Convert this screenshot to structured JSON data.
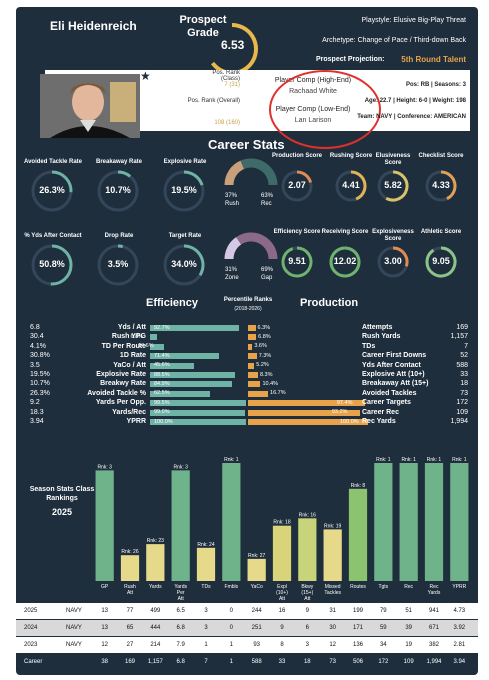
{
  "header": {
    "name": "Eli Heidenreich",
    "grade_title": "Prospect Grade",
    "grade_value": "6.53",
    "grade_fraction": 0.65,
    "playstyle": "Playstyle: Elusive Big-Play Threat",
    "archetype": "Archetype: Change of Pace / Third-down Back",
    "projection_label": "Prospect Projection:",
    "projection_value": "5th Round Talent"
  },
  "ranks": {
    "class_label": "Pos. Rank (Class)",
    "class_value": "7 (31)",
    "overall_label": "Pos. Rank (Overall)",
    "overall_value": "108 (160)"
  },
  "comps": {
    "high_label": "Player Comp (High-End)",
    "high_value": "Rachaad White",
    "low_label": "Player Comp (Low-End)",
    "low_value": "Lan Larison"
  },
  "bio": {
    "pos": "Pos: RB | Seasons: 3",
    "physical": "Age: 22.7 | Height: 6-0 | Weight: 198",
    "team": "Team: NAVY | Conference: AMERICAN"
  },
  "career_stats_title": "Career Stats",
  "rings_left": [
    {
      "label": "Avoided Tackle Rate",
      "value": "26.3%",
      "frac": 0.26,
      "color": "#6fb3a6"
    },
    {
      "label": "Breakaway Rate",
      "value": "10.7%",
      "frac": 0.11,
      "color": "#6fb3a6"
    },
    {
      "label": "Explosive Rate",
      "value": "19.5%",
      "frac": 0.2,
      "color": "#6fb3a6"
    },
    {
      "label": "% Yds After Contact",
      "value": "50.8%",
      "frac": 0.51,
      "color": "#6fb3a6"
    },
    {
      "label": "Drop Rate",
      "value": "3.5%",
      "frac": 0.04,
      "color": "#6fb3a6"
    },
    {
      "label": "Target Rate",
      "value": "34.0%",
      "frac": 0.34,
      "color": "#6fb3a6"
    }
  ],
  "donuts": [
    {
      "a_pct": "37%",
      "a_label": "Rush",
      "b_pct": "63%",
      "b_label": "Rec",
      "a_frac": 0.37,
      "a_color": "#c9a07a",
      "b_color": "#3f6a6a"
    },
    {
      "a_pct": "31%",
      "a_label": "Zone",
      "b_pct": "69%",
      "b_label": "Gap",
      "a_frac": 0.31,
      "a_color": "#d4c8e6",
      "b_color": "#8a6a86"
    }
  ],
  "scores": [
    {
      "label": "Production Score",
      "value": "2.07",
      "frac": 0.21,
      "color": "#e08b55"
    },
    {
      "label": "Rushing Score",
      "value": "4.41",
      "frac": 0.44,
      "color": "#e0b455"
    },
    {
      "label": "Elusiveness Score",
      "value": "5.82",
      "frac": 0.58,
      "color": "#d9c16a"
    },
    {
      "label": "Checklist Score",
      "value": "4.33",
      "frac": 0.43,
      "color": "#e0a055"
    },
    {
      "label": "Efficiency Score",
      "value": "9.51",
      "frac": 0.95,
      "color": "#6fb36f"
    },
    {
      "label": "Receiving Score",
      "value": "12.02",
      "frac": 1.0,
      "color": "#6fb36f"
    },
    {
      "label": "Explosiveness Score",
      "value": "3.00",
      "frac": 0.3,
      "color": "#e08b55"
    },
    {
      "label": "Athletic Score",
      "value": "9.05",
      "frac": 0.91,
      "color": "#8bc38b"
    }
  ],
  "efficiency": {
    "title": "Efficiency",
    "pct_title": "Percentile Ranks",
    "pct_sub": "(2018-2026)",
    "rows": [
      {
        "label": "Yds / Att",
        "value": "6.8",
        "pct": "92.7%",
        "frac": 0.927,
        "pct_r": "6.3%",
        "frac_r": 0.063
      },
      {
        "label": "Rush YPG",
        "value": "30.4",
        "pct": "6.8%",
        "frac": 0.068,
        "pct_r": "6.8%",
        "frac_r": 0.068
      },
      {
        "label": "TD Per Route",
        "value": "4.1%",
        "pct": "14.6%",
        "frac": 0.146,
        "pct_r": "3.6%",
        "frac_r": 0.036
      },
      {
        "label": "1D Rate",
        "value": "30.8%",
        "pct": "71.4%",
        "frac": 0.714,
        "pct_r": "7.3%",
        "frac_r": 0.073
      },
      {
        "label": "YaCo / Att",
        "value": "3.5",
        "pct": "45.6%",
        "frac": 0.456,
        "pct_r": "5.2%",
        "frac_r": 0.052
      },
      {
        "label": "Explosive Rate",
        "value": "19.5%",
        "pct": "88.5%",
        "frac": 0.885,
        "pct_r": "8.3%",
        "frac_r": 0.083
      },
      {
        "label": "Breakwy Rate",
        "value": "10.7%",
        "pct": "84.9%",
        "frac": 0.849,
        "pct_r": "10.4%",
        "frac_r": 0.104
      },
      {
        "label": "Avoided Tackle %",
        "value": "26.3%",
        "pct": "62.5%",
        "frac": 0.625,
        "pct_r": "16.7%",
        "frac_r": 0.167
      },
      {
        "label": "Yards Per Opp.",
        "value": "9.2",
        "pct": "99.5%",
        "frac": 0.995,
        "pct_r": "97.4%",
        "frac_r": 0.974
      },
      {
        "label": "Yards/Rec",
        "value": "18.3",
        "pct": "99.0%",
        "frac": 0.99,
        "pct_r": "93.2%",
        "frac_r": 0.932
      },
      {
        "label": "YPRR",
        "value": "3.94",
        "pct": "100.0%",
        "frac": 1.0,
        "pct_r": "100.0%",
        "frac_r": 1.0
      }
    ]
  },
  "production": {
    "title": "Production",
    "rows": [
      {
        "label": "Attempts",
        "value": "169"
      },
      {
        "label": "Rush Yards",
        "value": "1,157"
      },
      {
        "label": "TDs",
        "value": "7"
      },
      {
        "label": "Career First Downs",
        "value": "52"
      },
      {
        "label": "Yds After Contact",
        "value": "588"
      },
      {
        "label": "Explosive Att (10+)",
        "value": "33"
      },
      {
        "label": "Breakaway Att (15+)",
        "value": "18"
      },
      {
        "label": "Avoided Tackles",
        "value": "73"
      },
      {
        "label": "Career Targets",
        "value": "172"
      },
      {
        "label": "Career Rec",
        "value": "109"
      },
      {
        "label": "Rec Yards",
        "value": "1,994"
      }
    ]
  },
  "class_rank": {
    "title": "Season Stats Class Rankings",
    "year": "2025"
  },
  "chart_data": {
    "type": "bar",
    "categories": [
      "GP",
      "Rush Att",
      "Yards",
      "Yards Per Att",
      "TDs",
      "Fmbls",
      "YaCo",
      "Expl (10+) Att",
      "Bkwy (15+) Att",
      "Missed Tackles",
      "Routes",
      "Tgts",
      "Rec",
      "Rec Yards",
      "YPRR"
    ],
    "ranks": [
      3,
      26,
      23,
      3,
      24,
      1,
      27,
      18,
      16,
      19,
      8,
      1,
      1,
      1,
      1
    ],
    "rank_labels": [
      "Rnk: 3",
      "Rnk: 26",
      "Rnk: 23",
      "Rnk: 3",
      "Rnk: 24",
      "Rnk: 1",
      "Rnk: 27",
      "Rnk: 18",
      "Rnk: 16",
      "Rnk: 19",
      "Rnk: 8",
      "Rnk: 1",
      "Rnk: 1",
      "Rnk: 1",
      "Rnk: 1"
    ],
    "colors": [
      "#6fb38a",
      "#e6d98a",
      "#e6d98a",
      "#6fb38a",
      "#e6d98a",
      "#6fb38a",
      "#e6d98a",
      "#d9d47a",
      "#c7d47a",
      "#e6d98a",
      "#8bc36f",
      "#6fb38a",
      "#6fb38a",
      "#6fb38a",
      "#6fb38a"
    ]
  },
  "season_table": {
    "rows": [
      {
        "year": "2025",
        "team": "NAVY",
        "cells": [
          "13",
          "77",
          "499",
          "6.5",
          "3",
          "0",
          "244",
          "16",
          "9",
          "31",
          "199",
          "79",
          "51",
          "941",
          "4.73"
        ]
      },
      {
        "year": "2024",
        "team": "NAVY",
        "cells": [
          "13",
          "65",
          "444",
          "6.8",
          "3",
          "0",
          "251",
          "9",
          "6",
          "30",
          "171",
          "59",
          "39",
          "671",
          "3.92"
        ]
      },
      {
        "year": "2023",
        "team": "NAVY",
        "cells": [
          "12",
          "27",
          "214",
          "7.9",
          "1",
          "1",
          "93",
          "8",
          "3",
          "12",
          "136",
          "34",
          "19",
          "382",
          "2.81"
        ]
      }
    ],
    "career": {
      "year": "Career",
      "cells": [
        "38",
        "169",
        "1,157",
        "6.8",
        "7",
        "1",
        "588",
        "33",
        "18",
        "73",
        "506",
        "172",
        "109",
        "1,994",
        "3.94"
      ]
    }
  }
}
